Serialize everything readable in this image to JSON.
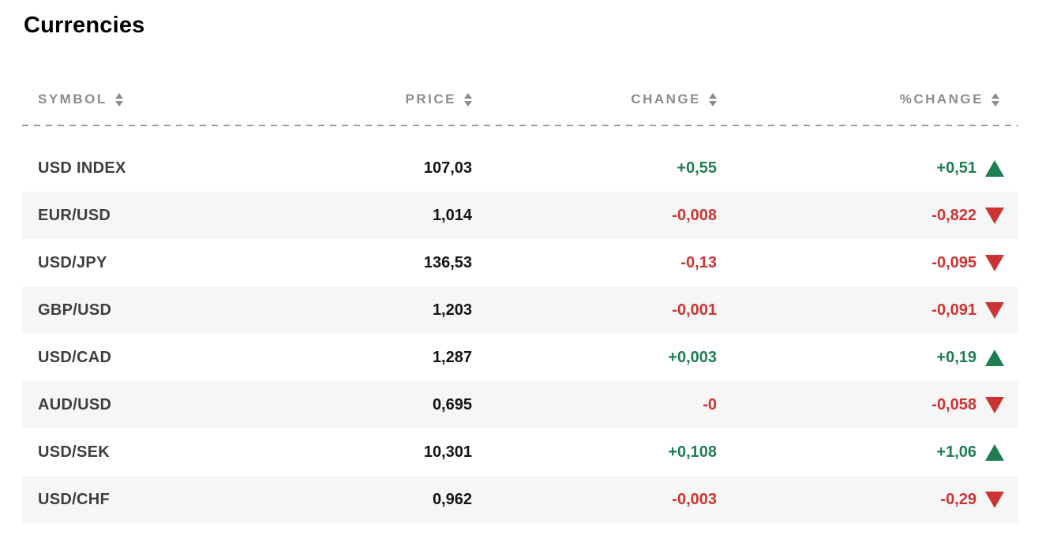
{
  "page": {
    "title": "Currencies"
  },
  "colors": {
    "positive": "#1e7e52",
    "negative": "#cc3433",
    "header_text": "#8c8c8c",
    "symbol_text": "#3e3e3e",
    "price_text": "#141414",
    "row_alt_bg": "#f6f6f7",
    "divider": "#9b9b9b"
  },
  "table": {
    "columns": [
      {
        "key": "symbol",
        "label": "SYMBOL"
      },
      {
        "key": "price",
        "label": "PRICE"
      },
      {
        "key": "change",
        "label": "CHANGE"
      },
      {
        "key": "pct_change",
        "label": "%CHANGE"
      }
    ],
    "rows": [
      {
        "symbol": "USD INDEX",
        "price": "107,03",
        "change": "+0,55",
        "pct_change": "+0,51",
        "direction": "up"
      },
      {
        "symbol": "EUR/USD",
        "price": "1,014",
        "change": "-0,008",
        "pct_change": "-0,822",
        "direction": "down"
      },
      {
        "symbol": "USD/JPY",
        "price": "136,53",
        "change": "-0,13",
        "pct_change": "-0,095",
        "direction": "down"
      },
      {
        "symbol": "GBP/USD",
        "price": "1,203",
        "change": "-0,001",
        "pct_change": "-0,091",
        "direction": "down"
      },
      {
        "symbol": "USD/CAD",
        "price": "1,287",
        "change": "+0,003",
        "pct_change": "+0,19",
        "direction": "up"
      },
      {
        "symbol": "AUD/USD",
        "price": "0,695",
        "change": "-0",
        "pct_change": "-0,058",
        "direction": "down"
      },
      {
        "symbol": "USD/SEK",
        "price": "10,301",
        "change": "+0,108",
        "pct_change": "+1,06",
        "direction": "up"
      },
      {
        "symbol": "USD/CHF",
        "price": "0,962",
        "change": "-0,003",
        "pct_change": "-0,29",
        "direction": "down"
      }
    ]
  }
}
